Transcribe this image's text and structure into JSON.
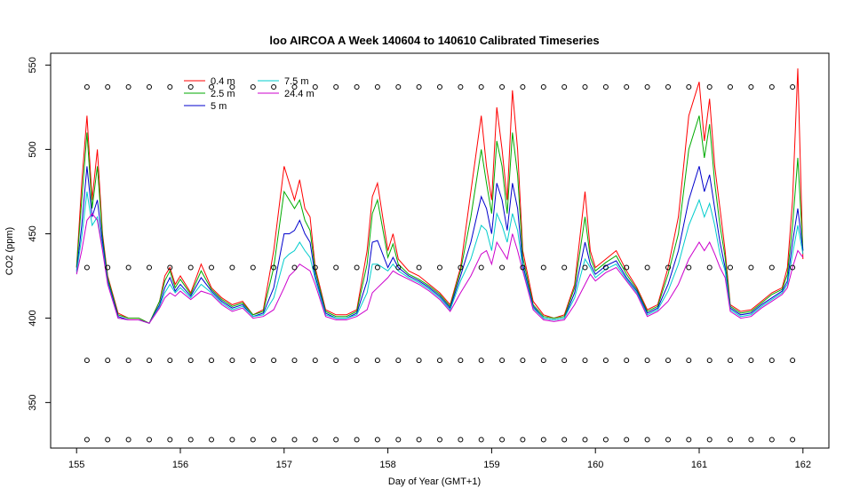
{
  "chart_data": {
    "type": "line",
    "title": "loo AIRCOA A  Week 140604 to 140610  Calibrated Timeseries",
    "xlabel": "Day of Year (GMT+1)",
    "ylabel": "CO2 (ppm)",
    "xlim": [
      154.75,
      162.25
    ],
    "ylim": [
      323,
      557
    ],
    "xticks": [
      155,
      156,
      157,
      158,
      159,
      160,
      161,
      162
    ],
    "yticks": [
      350,
      400,
      450,
      500,
      550
    ],
    "grid": false,
    "legend_position": "top-left",
    "series": [
      {
        "name": "0.4 m",
        "color": "#ff0000",
        "x": [
          155.0,
          155.05,
          155.1,
          155.15,
          155.2,
          155.25,
          155.3,
          155.4,
          155.5,
          155.6,
          155.7,
          155.8,
          155.85,
          155.9,
          155.95,
          156.0,
          156.1,
          156.2,
          156.3,
          156.4,
          156.5,
          156.6,
          156.7,
          156.8,
          156.9,
          157.0,
          157.05,
          157.1,
          157.15,
          157.2,
          157.25,
          157.3,
          157.4,
          157.5,
          157.6,
          157.7,
          157.8,
          157.85,
          157.9,
          158.0,
          158.05,
          158.1,
          158.2,
          158.3,
          158.4,
          158.5,
          158.6,
          158.7,
          158.8,
          158.9,
          158.95,
          159.0,
          159.05,
          159.1,
          159.15,
          159.2,
          159.25,
          159.3,
          159.4,
          159.5,
          159.6,
          159.7,
          159.8,
          159.9,
          159.95,
          160.0,
          160.1,
          160.2,
          160.3,
          160.4,
          160.5,
          160.6,
          160.7,
          160.8,
          160.9,
          161.0,
          161.05,
          161.1,
          161.15,
          161.2,
          161.25,
          161.3,
          161.4,
          161.5,
          161.6,
          161.7,
          161.8,
          161.85,
          161.9,
          161.95,
          162.0
        ],
        "y": [
          430,
          480,
          520,
          470,
          500,
          450,
          425,
          403,
          400,
          400,
          397,
          410,
          425,
          430,
          420,
          425,
          415,
          432,
          418,
          412,
          408,
          410,
          402,
          405,
          440,
          490,
          480,
          470,
          482,
          465,
          460,
          430,
          405,
          402,
          402,
          405,
          440,
          472,
          480,
          440,
          450,
          435,
          428,
          425,
          420,
          415,
          408,
          430,
          475,
          520,
          490,
          470,
          525,
          500,
          470,
          535,
          500,
          440,
          410,
          402,
          400,
          402,
          420,
          475,
          440,
          430,
          435,
          440,
          428,
          418,
          405,
          408,
          430,
          460,
          520,
          540,
          505,
          530,
          490,
          465,
          440,
          408,
          404,
          405,
          410,
          415,
          418,
          430,
          470,
          548,
          435
        ],
        "_stroke_note": ""
      },
      {
        "name": "2.5 m",
        "color": "#00aa00",
        "x": [
          155.0,
          155.05,
          155.1,
          155.15,
          155.2,
          155.25,
          155.3,
          155.4,
          155.5,
          155.6,
          155.7,
          155.8,
          155.85,
          155.9,
          155.95,
          156.0,
          156.1,
          156.2,
          156.3,
          156.4,
          156.5,
          156.6,
          156.7,
          156.8,
          156.9,
          157.0,
          157.05,
          157.1,
          157.15,
          157.2,
          157.25,
          157.3,
          157.4,
          157.5,
          157.6,
          157.7,
          157.8,
          157.85,
          157.9,
          158.0,
          158.05,
          158.1,
          158.2,
          158.3,
          158.4,
          158.5,
          158.6,
          158.7,
          158.8,
          158.9,
          158.95,
          159.0,
          159.05,
          159.1,
          159.15,
          159.2,
          159.25,
          159.3,
          159.4,
          159.5,
          159.6,
          159.7,
          159.8,
          159.9,
          159.95,
          160.0,
          160.1,
          160.2,
          160.3,
          160.4,
          160.5,
          160.6,
          160.7,
          160.8,
          160.9,
          161.0,
          161.05,
          161.1,
          161.15,
          161.2,
          161.25,
          161.3,
          161.4,
          161.5,
          161.6,
          161.7,
          161.8,
          161.85,
          161.9,
          161.95,
          162.0
        ],
        "y": [
          430,
          470,
          510,
          465,
          490,
          448,
          424,
          402,
          400,
          400,
          397,
          410,
          422,
          428,
          418,
          423,
          414,
          428,
          417,
          411,
          407,
          409,
          402,
          404,
          430,
          475,
          470,
          465,
          470,
          458,
          452,
          428,
          404,
          401,
          401,
          404,
          432,
          462,
          470,
          436,
          444,
          432,
          426,
          423,
          419,
          414,
          407,
          428,
          460,
          500,
          480,
          462,
          505,
          490,
          462,
          510,
          485,
          436,
          408,
          401,
          400,
          401,
          418,
          460,
          436,
          428,
          433,
          437,
          426,
          417,
          404,
          407,
          426,
          450,
          500,
          520,
          495,
          515,
          480,
          455,
          436,
          407,
          403,
          404,
          409,
          414,
          417,
          426,
          455,
          495,
          440
        ]
      },
      {
        "name": "5 m",
        "color": "#0000cc",
        "x": [
          155.0,
          155.05,
          155.1,
          155.15,
          155.2,
          155.25,
          155.3,
          155.4,
          155.5,
          155.6,
          155.7,
          155.8,
          155.85,
          155.9,
          155.95,
          156.0,
          156.1,
          156.2,
          156.3,
          156.4,
          156.5,
          156.6,
          156.7,
          156.8,
          156.9,
          157.0,
          157.05,
          157.1,
          157.15,
          157.2,
          157.25,
          157.3,
          157.4,
          157.5,
          157.6,
          157.7,
          157.8,
          157.85,
          157.9,
          158.0,
          158.05,
          158.1,
          158.2,
          158.3,
          158.4,
          158.5,
          158.6,
          158.7,
          158.8,
          158.9,
          158.95,
          159.0,
          159.05,
          159.1,
          159.15,
          159.2,
          159.25,
          159.3,
          159.4,
          159.5,
          159.6,
          159.7,
          159.8,
          159.9,
          159.95,
          160.0,
          160.1,
          160.2,
          160.3,
          160.4,
          160.5,
          160.6,
          160.7,
          160.8,
          160.9,
          161.0,
          161.05,
          161.1,
          161.15,
          161.2,
          161.25,
          161.3,
          161.4,
          161.5,
          161.6,
          161.7,
          161.8,
          161.85,
          161.9,
          161.95,
          162.0
        ],
        "y": [
          428,
          455,
          490,
          460,
          470,
          445,
          422,
          401,
          399,
          399,
          397,
          408,
          418,
          424,
          416,
          420,
          413,
          424,
          416,
          410,
          406,
          408,
          401,
          403,
          418,
          450,
          450,
          452,
          458,
          450,
          445,
          425,
          403,
          400,
          400,
          403,
          422,
          445,
          446,
          430,
          436,
          430,
          425,
          422,
          418,
          413,
          406,
          425,
          445,
          472,
          465,
          450,
          480,
          470,
          452,
          480,
          465,
          432,
          407,
          400,
          399,
          400,
          415,
          445,
          432,
          426,
          431,
          434,
          424,
          416,
          403,
          406,
          420,
          440,
          470,
          490,
          475,
          485,
          465,
          445,
          430,
          406,
          402,
          403,
          408,
          412,
          416,
          422,
          445,
          465,
          440
        ]
      },
      {
        "name": "7.5 m",
        "color": "#00cccc",
        "x": [
          155.0,
          155.05,
          155.1,
          155.15,
          155.2,
          155.25,
          155.3,
          155.4,
          155.5,
          155.6,
          155.7,
          155.8,
          155.85,
          155.9,
          155.95,
          156.0,
          156.1,
          156.2,
          156.3,
          156.4,
          156.5,
          156.6,
          156.7,
          156.8,
          156.9,
          157.0,
          157.05,
          157.1,
          157.15,
          157.2,
          157.25,
          157.3,
          157.4,
          157.5,
          157.6,
          157.7,
          157.8,
          157.85,
          157.9,
          158.0,
          158.05,
          158.1,
          158.2,
          158.3,
          158.4,
          158.5,
          158.6,
          158.7,
          158.8,
          158.9,
          158.95,
          159.0,
          159.05,
          159.1,
          159.15,
          159.2,
          159.25,
          159.3,
          159.4,
          159.5,
          159.6,
          159.7,
          159.8,
          159.9,
          159.95,
          160.0,
          160.1,
          160.2,
          160.3,
          160.4,
          160.5,
          160.6,
          160.7,
          160.8,
          160.9,
          161.0,
          161.05,
          161.1,
          161.15,
          161.2,
          161.25,
          161.3,
          161.4,
          161.5,
          161.6,
          161.7,
          161.8,
          161.85,
          161.9,
          161.95,
          162.0
        ],
        "y": [
          427,
          448,
          475,
          455,
          460,
          442,
          421,
          400,
          399,
          399,
          397,
          407,
          415,
          420,
          415,
          418,
          412,
          420,
          415,
          409,
          405,
          407,
          401,
          402,
          412,
          435,
          438,
          440,
          445,
          440,
          436,
          423,
          402,
          400,
          400,
          402,
          415,
          432,
          432,
          428,
          432,
          428,
          424,
          421,
          417,
          412,
          405,
          422,
          435,
          455,
          452,
          440,
          462,
          455,
          445,
          462,
          452,
          430,
          406,
          400,
          399,
          400,
          412,
          435,
          430,
          424,
          429,
          432,
          423,
          415,
          402,
          405,
          416,
          432,
          455,
          470,
          460,
          468,
          455,
          438,
          428,
          405,
          401,
          402,
          407,
          411,
          415,
          420,
          438,
          455,
          438
        ]
      },
      {
        "name": "24.4 m",
        "color": "#cc00cc",
        "x": [
          155.0,
          155.05,
          155.1,
          155.15,
          155.2,
          155.25,
          155.3,
          155.4,
          155.5,
          155.6,
          155.7,
          155.8,
          155.85,
          155.9,
          155.95,
          156.0,
          156.1,
          156.2,
          156.3,
          156.4,
          156.5,
          156.6,
          156.7,
          156.8,
          156.9,
          157.0,
          157.05,
          157.1,
          157.15,
          157.2,
          157.25,
          157.3,
          157.4,
          157.5,
          157.6,
          157.7,
          157.8,
          157.85,
          157.9,
          158.0,
          158.05,
          158.1,
          158.2,
          158.3,
          158.4,
          158.5,
          158.6,
          158.7,
          158.8,
          158.9,
          158.95,
          159.0,
          159.05,
          159.1,
          159.15,
          159.2,
          159.25,
          159.3,
          159.4,
          159.5,
          159.6,
          159.7,
          159.8,
          159.9,
          159.95,
          160.0,
          160.1,
          160.2,
          160.3,
          160.4,
          160.5,
          160.6,
          160.7,
          160.8,
          160.9,
          161.0,
          161.05,
          161.1,
          161.15,
          161.2,
          161.25,
          161.3,
          161.4,
          161.5,
          161.6,
          161.7,
          161.8,
          161.85,
          161.9,
          161.95,
          162.0
        ],
        "y": [
          426,
          440,
          458,
          462,
          458,
          440,
          420,
          400,
          399,
          399,
          397,
          406,
          412,
          415,
          413,
          416,
          411,
          416,
          414,
          408,
          404,
          406,
          400,
          401,
          405,
          418,
          425,
          428,
          432,
          430,
          428,
          420,
          401,
          399,
          399,
          401,
          405,
          415,
          418,
          424,
          428,
          426,
          423,
          420,
          416,
          411,
          404,
          415,
          425,
          438,
          440,
          432,
          445,
          440,
          435,
          450,
          440,
          428,
          405,
          399,
          398,
          399,
          408,
          420,
          426,
          422,
          427,
          430,
          422,
          414,
          401,
          404,
          410,
          420,
          435,
          445,
          440,
          445,
          438,
          430,
          424,
          404,
          400,
          401,
          406,
          410,
          414,
          418,
          430,
          440,
          436
        ]
      }
    ],
    "calibration_points": {
      "name": "",
      "marker": "open-circle",
      "color": "#000000",
      "levels": [
        537,
        430,
        375,
        328
      ],
      "x": [
        155.1,
        155.3,
        155.5,
        155.7,
        155.9,
        156.1,
        156.3,
        156.5,
        156.7,
        156.9,
        157.1,
        157.3,
        157.5,
        157.7,
        157.9,
        158.1,
        158.3,
        158.5,
        158.7,
        158.9,
        159.1,
        159.3,
        159.5,
        159.7,
        159.9,
        160.1,
        160.3,
        160.5,
        160.7,
        160.9,
        161.1,
        161.3,
        161.5,
        161.7,
        161.9
      ]
    }
  },
  "legend": {
    "items": [
      {
        "label": "0.4 m",
        "color": "#ff0000"
      },
      {
        "label": "2.5 m",
        "color": "#00aa00"
      },
      {
        "label": "5 m",
        "color": "#0000cc"
      },
      {
        "label": "7.5 m",
        "color": "#00cccc"
      },
      {
        "label": "24.4 m",
        "color": "#cc00cc"
      }
    ]
  }
}
